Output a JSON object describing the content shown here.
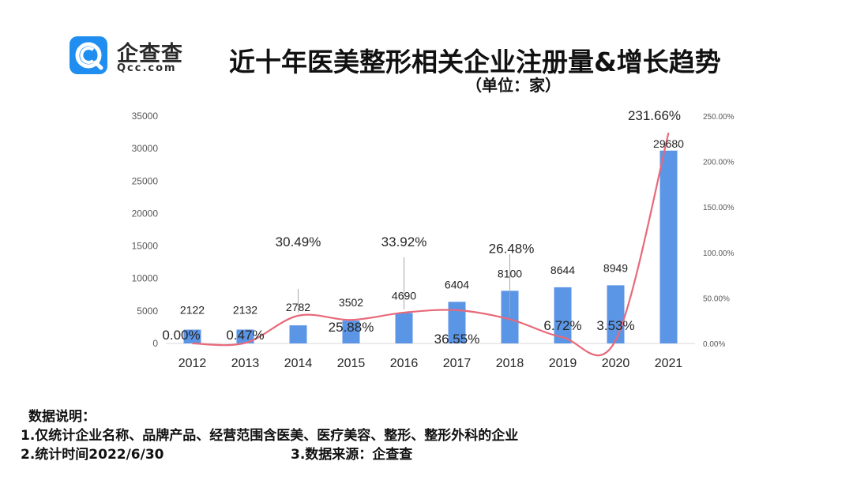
{
  "logo": {
    "name": "企查查",
    "domain": "Qcc.com"
  },
  "title": "近十年医美整形相关企业注册量&增长趋势",
  "subtitle": "（单位：家）",
  "notes": {
    "heading": "数据说明：",
    "line1": "1.仅统计企业名称、品牌产品、经营范围含医美、医疗美容、整形、整形外科的企业",
    "line2": "2.统计时间2022/6/30",
    "line3": "3.数据来源：企查查"
  },
  "colors": {
    "bar": "#5b95e6",
    "line": "#e8697a",
    "brand": "#1f8ef0"
  },
  "chart_data": {
    "type": "bar",
    "categories": [
      "2012",
      "2013",
      "2014",
      "2015",
      "2016",
      "2017",
      "2018",
      "2019",
      "2020",
      "2021"
    ],
    "series": [
      {
        "type": "bar",
        "axis": "left",
        "values": [
          2122,
          2132,
          2782,
          3502,
          4690,
          6404,
          8100,
          8644,
          8949,
          29680
        ],
        "labels": [
          "2122",
          "2132",
          "2782",
          "3502",
          "4690",
          "6404",
          "8100",
          "8644",
          "8949",
          "29680"
        ]
      },
      {
        "type": "line",
        "axis": "right",
        "values": [
          0.0,
          0.47,
          30.49,
          25.88,
          33.92,
          36.55,
          26.48,
          6.72,
          3.53,
          231.66
        ],
        "labels": [
          "0.00%",
          "0.47%",
          "30.49%",
          "25.88%",
          "33.92%",
          "36.55%",
          "26.48%",
          "6.72%",
          "3.53%",
          "231.66%"
        ]
      }
    ],
    "ylim_left": [
      0,
      35000
    ],
    "yticks_left": [
      "0",
      "5000",
      "10000",
      "15000",
      "20000",
      "25000",
      "30000",
      "35000"
    ],
    "ylim_right": [
      0,
      250
    ],
    "yticks_right": [
      "0.00%",
      "50.00%",
      "100.00%",
      "150.00%",
      "200.00%",
      "250.00%"
    ],
    "grid": false,
    "legend": "none"
  }
}
